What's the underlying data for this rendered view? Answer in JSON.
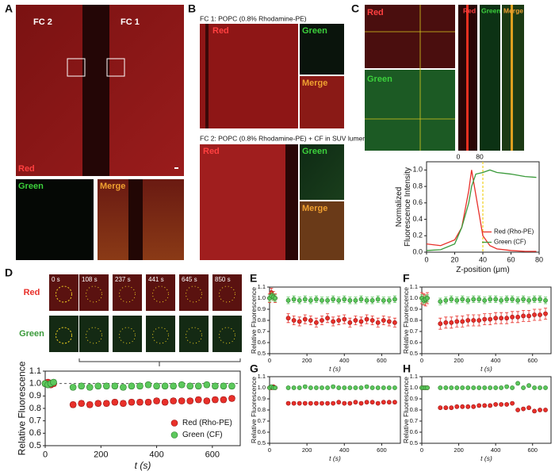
{
  "panels": {
    "panel_labels": [
      "A",
      "B",
      "C",
      "D",
      "E",
      "F",
      "G",
      "H"
    ],
    "a": {
      "fc2": "FC 2",
      "fc1": "FC 1",
      "red": "Red",
      "green": "Green",
      "merge": "Merge"
    },
    "b": {
      "fc1_caption": "FC 1: POPC (0.8% Rhodamine-PE)",
      "fc2_caption": "FC 2: POPC (0.8% Rhodamine-PE) + CF in SUV lumen",
      "red": "Red",
      "green": "Green",
      "merge": "Merge"
    },
    "c": {
      "red": "Red",
      "green": "Green",
      "strip_labels": [
        "Red",
        "Green",
        "Merge"
      ],
      "strip_ticks": [
        0,
        80
      ]
    },
    "d": {
      "red": "Red",
      "green": "Green",
      "times": [
        "0 s",
        "108 s",
        "237 s",
        "441 s",
        "645 s",
        "850 s"
      ]
    }
  },
  "chart_data": [
    {
      "type": "line",
      "xlabel": "Z-position (μm)",
      "ylabel": [
        "Normalized",
        "Fluorescence Intensity"
      ],
      "x": [
        0,
        10,
        20,
        25,
        30,
        32,
        35,
        40,
        45,
        50,
        60,
        70,
        78
      ],
      "series": [
        {
          "name": "Red (Rho-PE)",
          "color": "#e8302a",
          "values": [
            0.1,
            0.08,
            0.15,
            0.3,
            0.75,
            1.0,
            0.7,
            0.2,
            0.08,
            0.04,
            0.02,
            0.01,
            0.01
          ]
        },
        {
          "name": "Green (CF)",
          "color": "#3a9a3a",
          "values": [
            0.02,
            0.03,
            0.1,
            0.3,
            0.6,
            0.8,
            0.95,
            0.97,
            1.0,
            0.97,
            0.95,
            0.92,
            0.91
          ]
        }
      ],
      "xlim": [
        0,
        80
      ],
      "xticks": [
        0,
        20,
        40,
        60,
        80
      ],
      "ylim": [
        0,
        1.1
      ],
      "yticks": [
        {
          "value": 0,
          "label": "0.0"
        },
        0.2,
        0.4,
        0.6,
        0.8,
        {
          "value": 1,
          "label": "1.0"
        }
      ],
      "vline": 40,
      "vline_color": "#f0d020",
      "legend": "lower right"
    },
    {
      "type": "scatter",
      "xlabel": "t (s)",
      "ylabel": [
        "Relative Fluorescence"
      ],
      "x": [
        0,
        10,
        20,
        30,
        100,
        130,
        160,
        190,
        220,
        250,
        280,
        310,
        340,
        370,
        400,
        430,
        460,
        490,
        520,
        550,
        580,
        610,
        640,
        670
      ],
      "series": [
        {
          "name": "Red (Rho-PE)",
          "color": "#e8302a",
          "error": 0.02,
          "values": [
            1.0,
            1.01,
            0.99,
            1.0,
            0.83,
            0.84,
            0.83,
            0.84,
            0.84,
            0.85,
            0.84,
            0.85,
            0.85,
            0.85,
            0.86,
            0.85,
            0.86,
            0.86,
            0.86,
            0.87,
            0.86,
            0.87,
            0.87,
            0.88
          ]
        },
        {
          "name": "Green (CF)",
          "color": "#5cc85c",
          "error": 0.02,
          "values": [
            1.0,
            0.99,
            1.0,
            1.01,
            0.97,
            0.98,
            0.97,
            0.98,
            0.98,
            0.98,
            0.97,
            0.98,
            0.98,
            0.99,
            0.98,
            0.98,
            0.98,
            0.99,
            0.98,
            0.98,
            0.99,
            0.98,
            0.98,
            0.98
          ]
        }
      ],
      "xlim": [
        0,
        700
      ],
      "xticks": [
        0,
        200,
        400,
        600
      ],
      "ylim": [
        0.5,
        1.1
      ],
      "yticks": [
        0.5,
        0.6,
        0.7,
        0.8,
        0.9,
        {
          "value": 1,
          "label": "1.0"
        },
        1.1
      ],
      "hline": 1,
      "legend": "lower right"
    },
    {
      "type": "scatter",
      "xlabel": "t (s)",
      "ylabel": [
        "Relative Fluorescence"
      ],
      "x": [
        0,
        10,
        20,
        30,
        100,
        130,
        160,
        190,
        220,
        250,
        280,
        310,
        340,
        370,
        400,
        430,
        460,
        490,
        520,
        550,
        580,
        610,
        640,
        670
      ],
      "series": [
        {
          "name": "Red (Rho-PE)",
          "color": "#e8302a",
          "error": 0.04,
          "values": [
            1.0,
            1.05,
            1.02,
            1.0,
            0.82,
            0.8,
            0.79,
            0.81,
            0.8,
            0.78,
            0.8,
            0.82,
            0.79,
            0.8,
            0.81,
            0.78,
            0.8,
            0.79,
            0.81,
            0.8,
            0.78,
            0.8,
            0.79,
            0.78
          ]
        },
        {
          "name": "Green (CF)",
          "color": "#5cc85c",
          "error": 0.03,
          "values": [
            1.0,
            1.02,
            1.01,
            1.0,
            0.98,
            0.99,
            0.98,
            0.99,
            0.98,
            0.99,
            0.98,
            0.98,
            0.99,
            0.98,
            0.99,
            0.98,
            0.98,
            0.99,
            0.98,
            0.98,
            0.99,
            0.98,
            0.98,
            0.99
          ]
        }
      ],
      "xlim": [
        0,
        700
      ],
      "xticks": [
        0,
        200,
        400,
        600
      ],
      "ylim": [
        0.5,
        1.1
      ],
      "yticks": [
        0.5,
        0.6,
        0.7,
        0.8,
        0.9,
        {
          "value": 1,
          "label": "1.0"
        },
        1.1
      ]
    },
    {
      "type": "scatter",
      "xlabel": "t (s)",
      "ylabel": [
        "Relative Fluorescence"
      ],
      "x": [
        0,
        10,
        20,
        30,
        100,
        130,
        160,
        190,
        220,
        250,
        280,
        310,
        340,
        370,
        400,
        430,
        460,
        490,
        520,
        550,
        580,
        610,
        640,
        670
      ],
      "series": [
        {
          "name": "Red (Rho-PE)",
          "color": "#e8302a",
          "error": 0.05,
          "values": [
            1.0,
            0.99,
            0.98,
            1.0,
            0.77,
            0.78,
            0.78,
            0.79,
            0.79,
            0.8,
            0.8,
            0.8,
            0.81,
            0.81,
            0.82,
            0.82,
            0.82,
            0.83,
            0.83,
            0.84,
            0.84,
            0.85,
            0.85,
            0.86
          ]
        },
        {
          "name": "Green (CF)",
          "color": "#5cc85c",
          "error": 0.03,
          "values": [
            1.0,
            0.98,
            0.99,
            1.0,
            0.97,
            0.98,
            0.99,
            0.98,
            0.99,
            0.98,
            0.99,
            0.99,
            0.98,
            0.99,
            0.99,
            0.98,
            0.99,
            0.99,
            0.98,
            0.99,
            0.98,
            0.99,
            0.99,
            0.98
          ]
        }
      ],
      "xlim": [
        0,
        700
      ],
      "xticks": [
        0,
        200,
        400,
        600
      ],
      "ylim": [
        0.5,
        1.1
      ],
      "yticks": [
        0.5,
        0.6,
        0.7,
        0.8,
        0.9,
        {
          "value": 1,
          "label": "1.0"
        },
        1.1
      ]
    },
    {
      "type": "scatter",
      "xlabel": "t (s)",
      "ylabel": [
        "Relative Fluorescence"
      ],
      "x": [
        0,
        10,
        20,
        30,
        100,
        130,
        160,
        190,
        220,
        250,
        280,
        310,
        340,
        370,
        400,
        430,
        460,
        490,
        520,
        550,
        580,
        610,
        640,
        670
      ],
      "series": [
        {
          "name": "Red (Rho-PE)",
          "color": "#e8302a",
          "error": 0.01,
          "values": [
            1.0,
            1.0,
            1.01,
            1.0,
            0.86,
            0.86,
            0.86,
            0.86,
            0.86,
            0.86,
            0.86,
            0.86,
            0.86,
            0.87,
            0.86,
            0.86,
            0.87,
            0.86,
            0.87,
            0.87,
            0.86,
            0.87,
            0.87,
            0.87
          ]
        },
        {
          "name": "Green (CF)",
          "color": "#5cc85c",
          "error": 0.01,
          "values": [
            1.0,
            1.01,
            1.0,
            1.0,
            1.0,
            1.0,
            1.0,
            1.01,
            1.0,
            1.0,
            1.0,
            1.0,
            1.01,
            1.0,
            1.0,
            1.0,
            1.0,
            1.0,
            1.01,
            1.0,
            1.0,
            1.0,
            1.0,
            1.0
          ]
        }
      ],
      "xlim": [
        0,
        700
      ],
      "xticks": [
        0,
        200,
        400,
        600
      ],
      "ylim": [
        0.5,
        1.1
      ],
      "yticks": [
        0.5,
        0.6,
        0.7,
        0.8,
        0.9,
        {
          "value": 1,
          "label": "1.0"
        },
        1.1
      ]
    },
    {
      "type": "scatter",
      "xlabel": "t (s)",
      "ylabel": [
        "Relative Fluorescence"
      ],
      "x": [
        0,
        10,
        20,
        30,
        100,
        130,
        160,
        190,
        220,
        250,
        280,
        310,
        340,
        370,
        400,
        430,
        460,
        490,
        520,
        550,
        580,
        610,
        640,
        670
      ],
      "series": [
        {
          "name": "Red (Rho-PE)",
          "color": "#e8302a",
          "error": 0.01,
          "values": [
            1.0,
            1.0,
            1.0,
            1.0,
            0.82,
            0.82,
            0.82,
            0.83,
            0.83,
            0.83,
            0.83,
            0.84,
            0.84,
            0.84,
            0.85,
            0.85,
            0.85,
            0.86,
            0.8,
            0.81,
            0.82,
            0.79,
            0.8,
            0.8
          ]
        },
        {
          "name": "Green (CF)",
          "color": "#5cc85c",
          "error": 0.01,
          "values": [
            1.0,
            1.0,
            1.0,
            1.0,
            1.0,
            1.0,
            1.0,
            1.0,
            1.0,
            1.0,
            1.0,
            1.0,
            1.0,
            1.0,
            1.0,
            1.0,
            1.01,
            1.0,
            1.04,
            1.0,
            1.02,
            1.0,
            1.0,
            1.0
          ]
        }
      ],
      "xlim": [
        0,
        700
      ],
      "xticks": [
        0,
        200,
        400,
        600
      ],
      "ylim": [
        0.5,
        1.1
      ],
      "yticks": [
        0.5,
        0.6,
        0.7,
        0.8,
        0.9,
        {
          "value": 1,
          "label": "1.0"
        },
        1.1
      ]
    }
  ]
}
